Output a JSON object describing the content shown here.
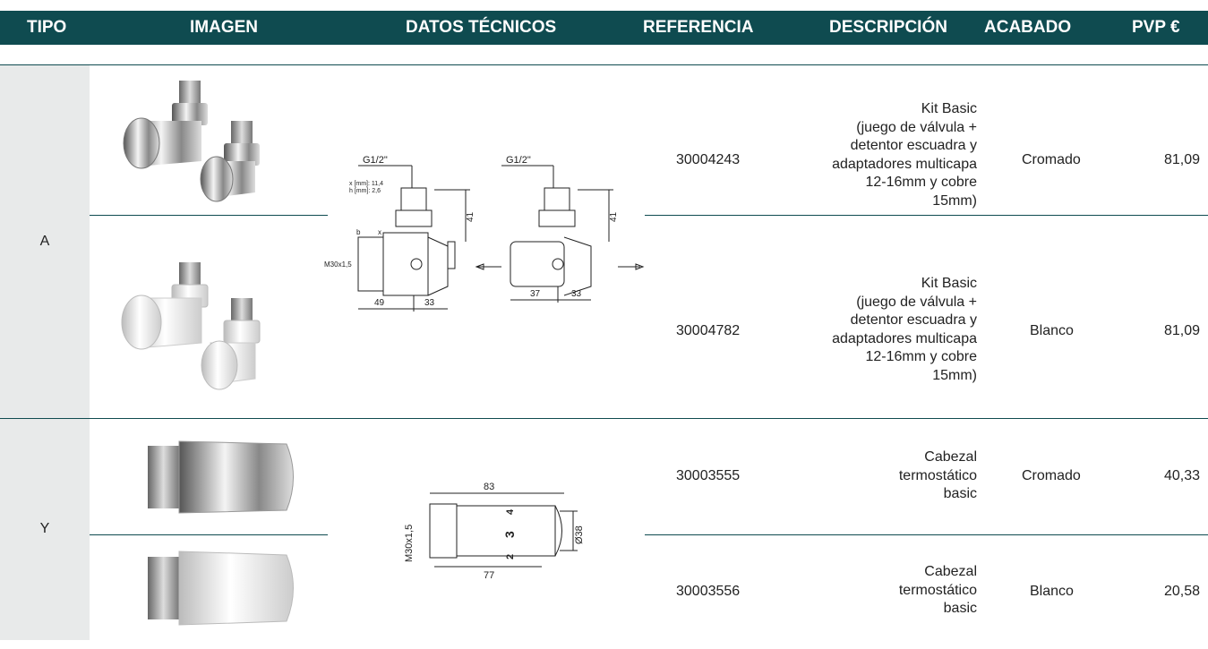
{
  "header": {
    "columns": [
      "TIPO",
      "IMAGEN",
      "DATOS TÉCNICOS",
      "REFERENCIA",
      "DESCRIPCIÓN",
      "ACABADO",
      "PVP €"
    ]
  },
  "groups": [
    {
      "tipo": "A",
      "drawing": {
        "left_thread": "G1/2\"",
        "x_value": "x [mm]: 11,4",
        "h_value": "h [mm]: 2,6",
        "b": "b",
        "x": "x",
        "left_nut": "M30x1,5",
        "left_height": "41",
        "left_width_a": "49",
        "left_width_b": "33",
        "right_thread": "G1/2\"",
        "right_height": "41",
        "right_width_a": "37",
        "right_width_b": "33"
      },
      "rows": [
        {
          "referencia": "30004243",
          "descripcion": [
            "Kit Basic",
            "(juego de válvula +",
            "detentor escuadra y",
            "adaptadores multicapa",
            "12-16mm y cobre",
            "15mm)"
          ],
          "acabado": "Cromado",
          "pvp": "81,09"
        },
        {
          "referencia": "30004782",
          "descripcion": [
            "Kit Basic",
            "(juego de válvula +",
            "detentor escuadra y",
            "adaptadores multicapa",
            "12-16mm y cobre",
            "15mm)"
          ],
          "acabado": "Blanco",
          "pvp": "81,09"
        }
      ]
    },
    {
      "tipo": "Y",
      "drawing": {
        "length": "83",
        "thread": "M30x1,5",
        "diameter": "Ø38",
        "body_length": "77",
        "dial_4": "4",
        "dial_3": "3",
        "dial_2": "2"
      },
      "rows": [
        {
          "referencia": "30003555",
          "descripcion": [
            "Cabezal",
            "termostático",
            "basic"
          ],
          "acabado": "Cromado",
          "pvp": "40,33"
        },
        {
          "referencia": "30003556",
          "descripcion": [
            "Cabezal",
            "termostático",
            "basic"
          ],
          "acabado": "Blanco",
          "pvp": "20,58"
        }
      ]
    }
  ]
}
